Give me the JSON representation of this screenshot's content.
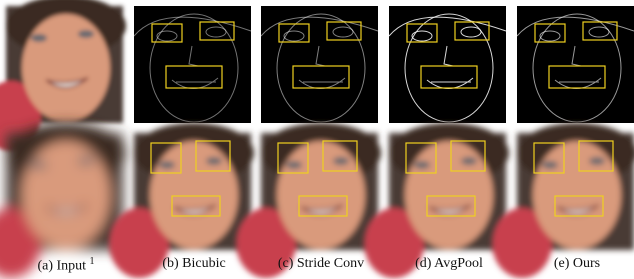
{
  "columns": [
    {
      "label": "(a) Input",
      "superscript": "1"
    },
    {
      "label": "(b) Bicubic"
    },
    {
      "label": "(c) Stride Conv"
    },
    {
      "label": "(d) AvgPool"
    },
    {
      "label": "(e) Ours"
    }
  ]
}
